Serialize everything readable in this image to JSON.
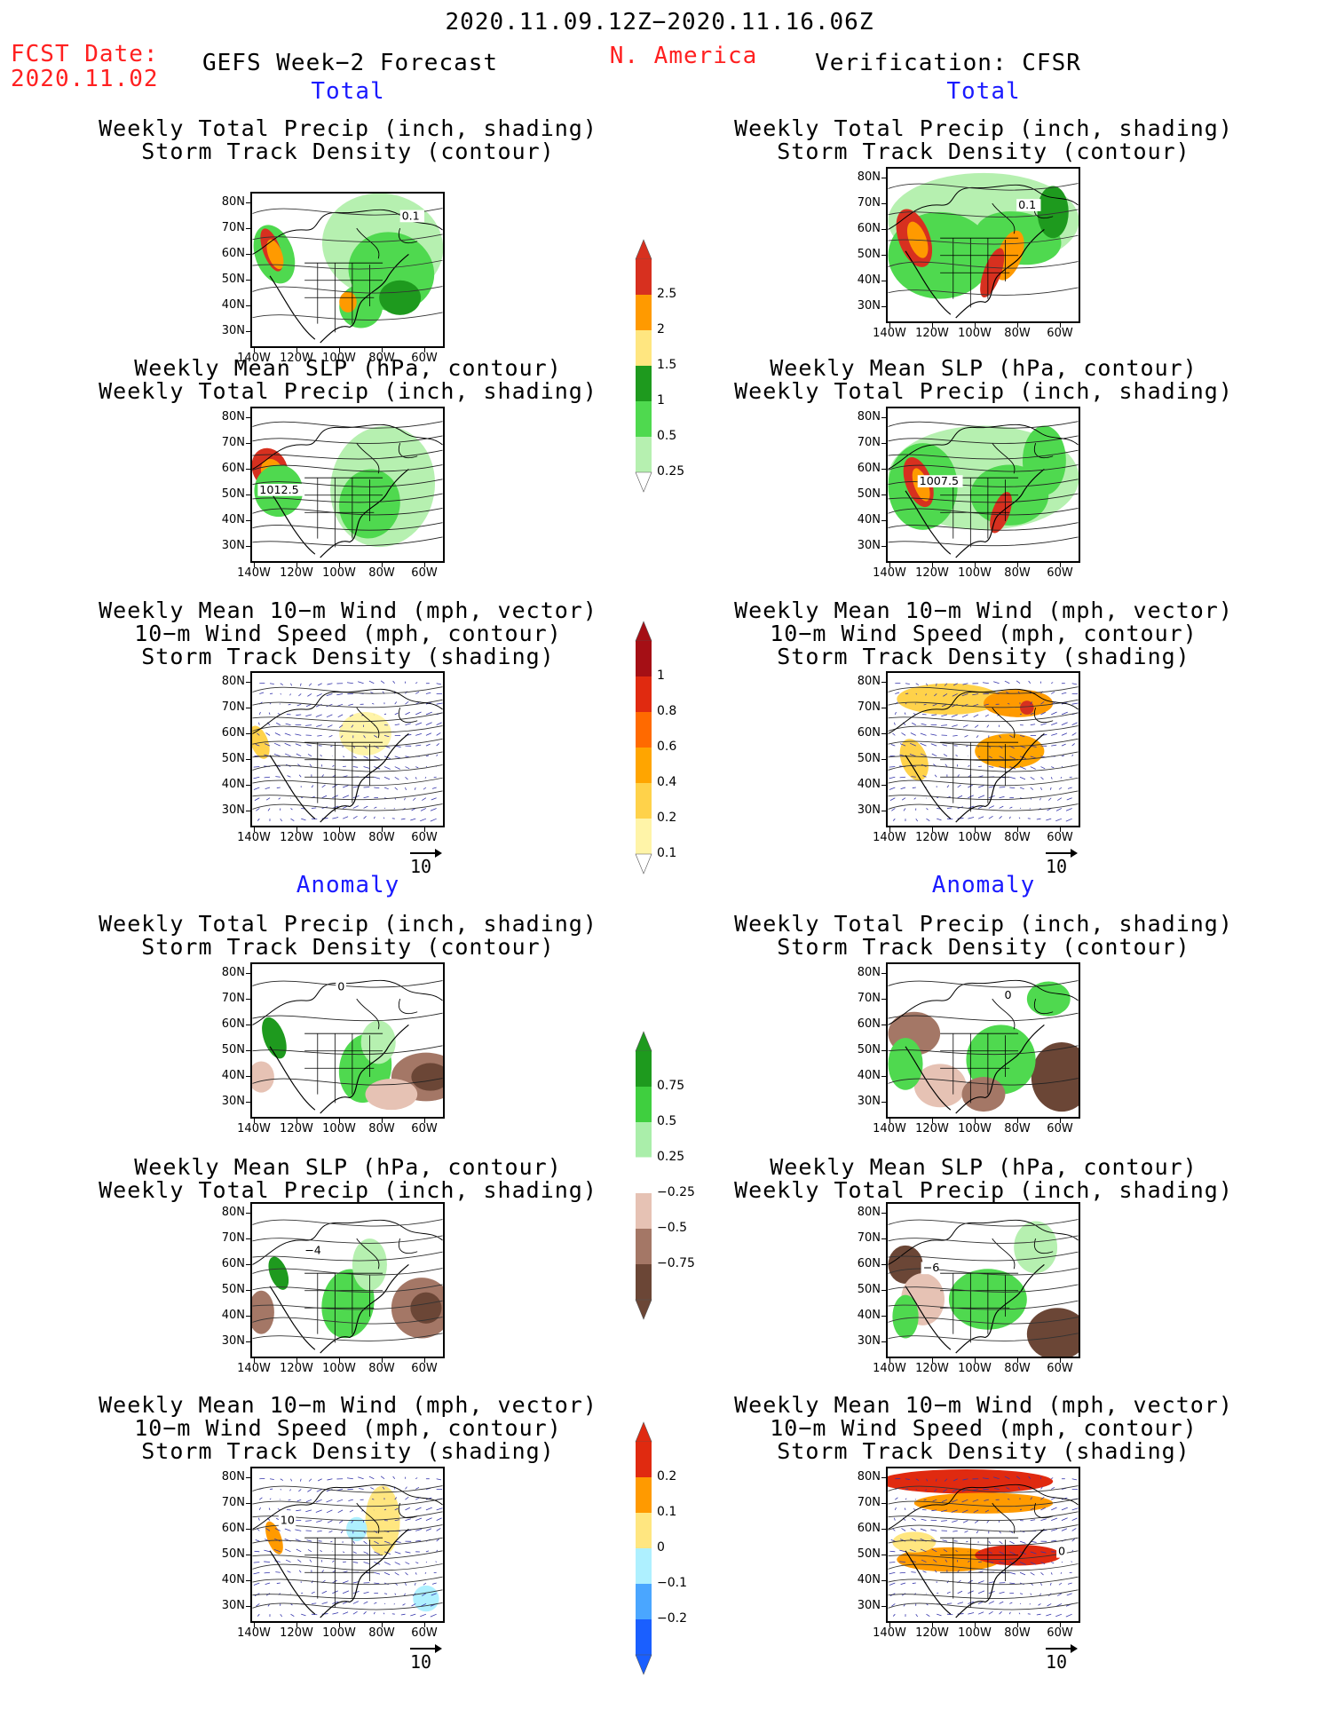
{
  "header": {
    "period": "2020.11.09.12Z−2020.11.16.06Z",
    "fcst_label": "FCST Date:",
    "fcst_date": "2020.11.02",
    "left_title": "GEFS Week−2 Forecast",
    "region": "N. America",
    "right_title": "Verification: CFSR"
  },
  "sections": {
    "total": "Total",
    "anomaly": "Anomaly"
  },
  "panel_titles": {
    "precip": [
      "Weekly Total Precip (inch, shading)",
      "Storm Track Density (contour)"
    ],
    "slp": [
      "Weekly Mean SLP (hPa, contour)",
      "Weekly Total Precip (inch, shading)"
    ],
    "wind": [
      "Weekly Mean 10−m Wind (mph, vector)",
      "10−m Wind Speed (mph, contour)",
      "Storm Track Density (shading)"
    ]
  },
  "axes": {
    "lat_labels": [
      "80N",
      "70N",
      "60N",
      "50N",
      "40N",
      "30N"
    ],
    "lon_labels": [
      "140W",
      "120W",
      "100W",
      "80W",
      "60W"
    ]
  },
  "contour_labels": {
    "fcst_total_precip": "0.1",
    "obs_total_precip": "0.1",
    "fcst_total_slp": "1012.5",
    "obs_total_slp": "1007.5",
    "fcst_anom_precip": "0",
    "obs_anom_precip": "0",
    "fcst_anom_slp": "−4",
    "obs_anom_slp": "−6",
    "fcst_anom_wind": "10",
    "obs_anom_wind": "0"
  },
  "vector_ref": "10",
  "colorbars": [
    {
      "name": "total-precip",
      "labels": [
        "2.5",
        "2",
        "1.5",
        "1",
        "0.5",
        "0.25"
      ],
      "colors": [
        "#d7301f",
        "#ff9a00",
        "#ffe680",
        "#1e9a1e",
        "#4fd94f",
        "#b6f0b0"
      ]
    },
    {
      "name": "total-storm-density",
      "labels": [
        "1",
        "0.8",
        "0.6",
        "0.4",
        "0.2",
        "0.1"
      ],
      "colors": [
        "#a50f15",
        "#e02a10",
        "#ff6a00",
        "#ffa500",
        "#ffd24a",
        "#fff4a8"
      ]
    },
    {
      "name": "anom-precip",
      "labels": [
        "0.75",
        "0.5",
        "0.25",
        "−0.25",
        "−0.5",
        "−0.75"
      ],
      "colors": [
        "#1e9a1e",
        "#3fcf3f",
        "#aaeeaa",
        "#ffffff",
        "#e6c2b4",
        "#a47766",
        "#6b4636"
      ]
    },
    {
      "name": "anom-storm-density",
      "labels": [
        "0.2",
        "0.1",
        "0",
        "−0.1",
        "−0.2"
      ],
      "colors": [
        "#e02a10",
        "#ff9a00",
        "#ffe680",
        "#aef0ff",
        "#4aa6ff",
        "#1a5fff"
      ]
    }
  ]
}
